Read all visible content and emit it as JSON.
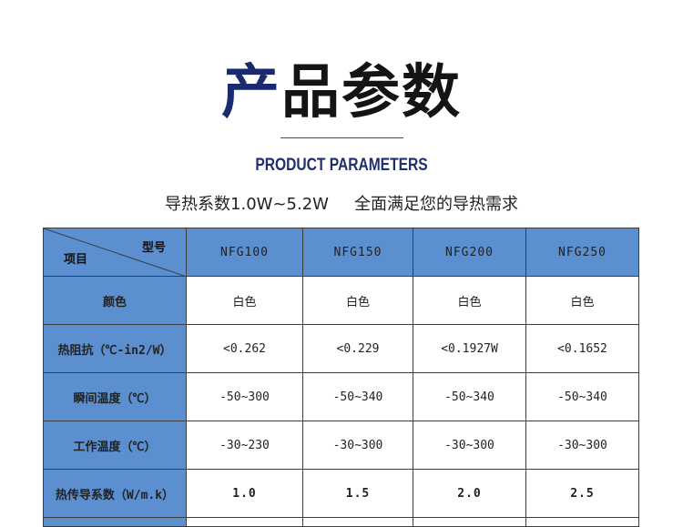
{
  "title": {
    "first": "产",
    "rest": "品参数"
  },
  "subtitle_en": "PRODUCT PARAMETERS",
  "tagline": {
    "left": "导热系数1.0W~5.2W",
    "right": "全面满足您的导热需求"
  },
  "table": {
    "corner": {
      "top_right": "型号",
      "bottom_left": "项目"
    },
    "models": [
      "NFG100",
      "NFG150",
      "NFG200",
      "NFG250"
    ],
    "rows": [
      {
        "label": "颜色",
        "values": [
          "白色",
          "白色",
          "白色",
          "白色"
        ]
      },
      {
        "label": "热阻抗（℃-in2/W）",
        "values": [
          "<0.262",
          "<0.229",
          "<0.1927W",
          "<0.1652"
        ]
      },
      {
        "label": "瞬间温度（℃）",
        "values": [
          "-50~300",
          "-50~340",
          "-50~340",
          "-50~340"
        ]
      },
      {
        "label": "工作温度（℃）",
        "values": [
          "-30~230",
          "-30~300",
          "-30~300",
          "-30~300"
        ]
      },
      {
        "label": "热传导系数（W/m.k）",
        "values": [
          "1.0",
          "1.5",
          "2.0",
          "2.5"
        ]
      }
    ]
  },
  "colors": {
    "header_blue": "#5b8fcf",
    "highlight_red": "#d01818",
    "title_blue": "#1a2a6e"
  }
}
